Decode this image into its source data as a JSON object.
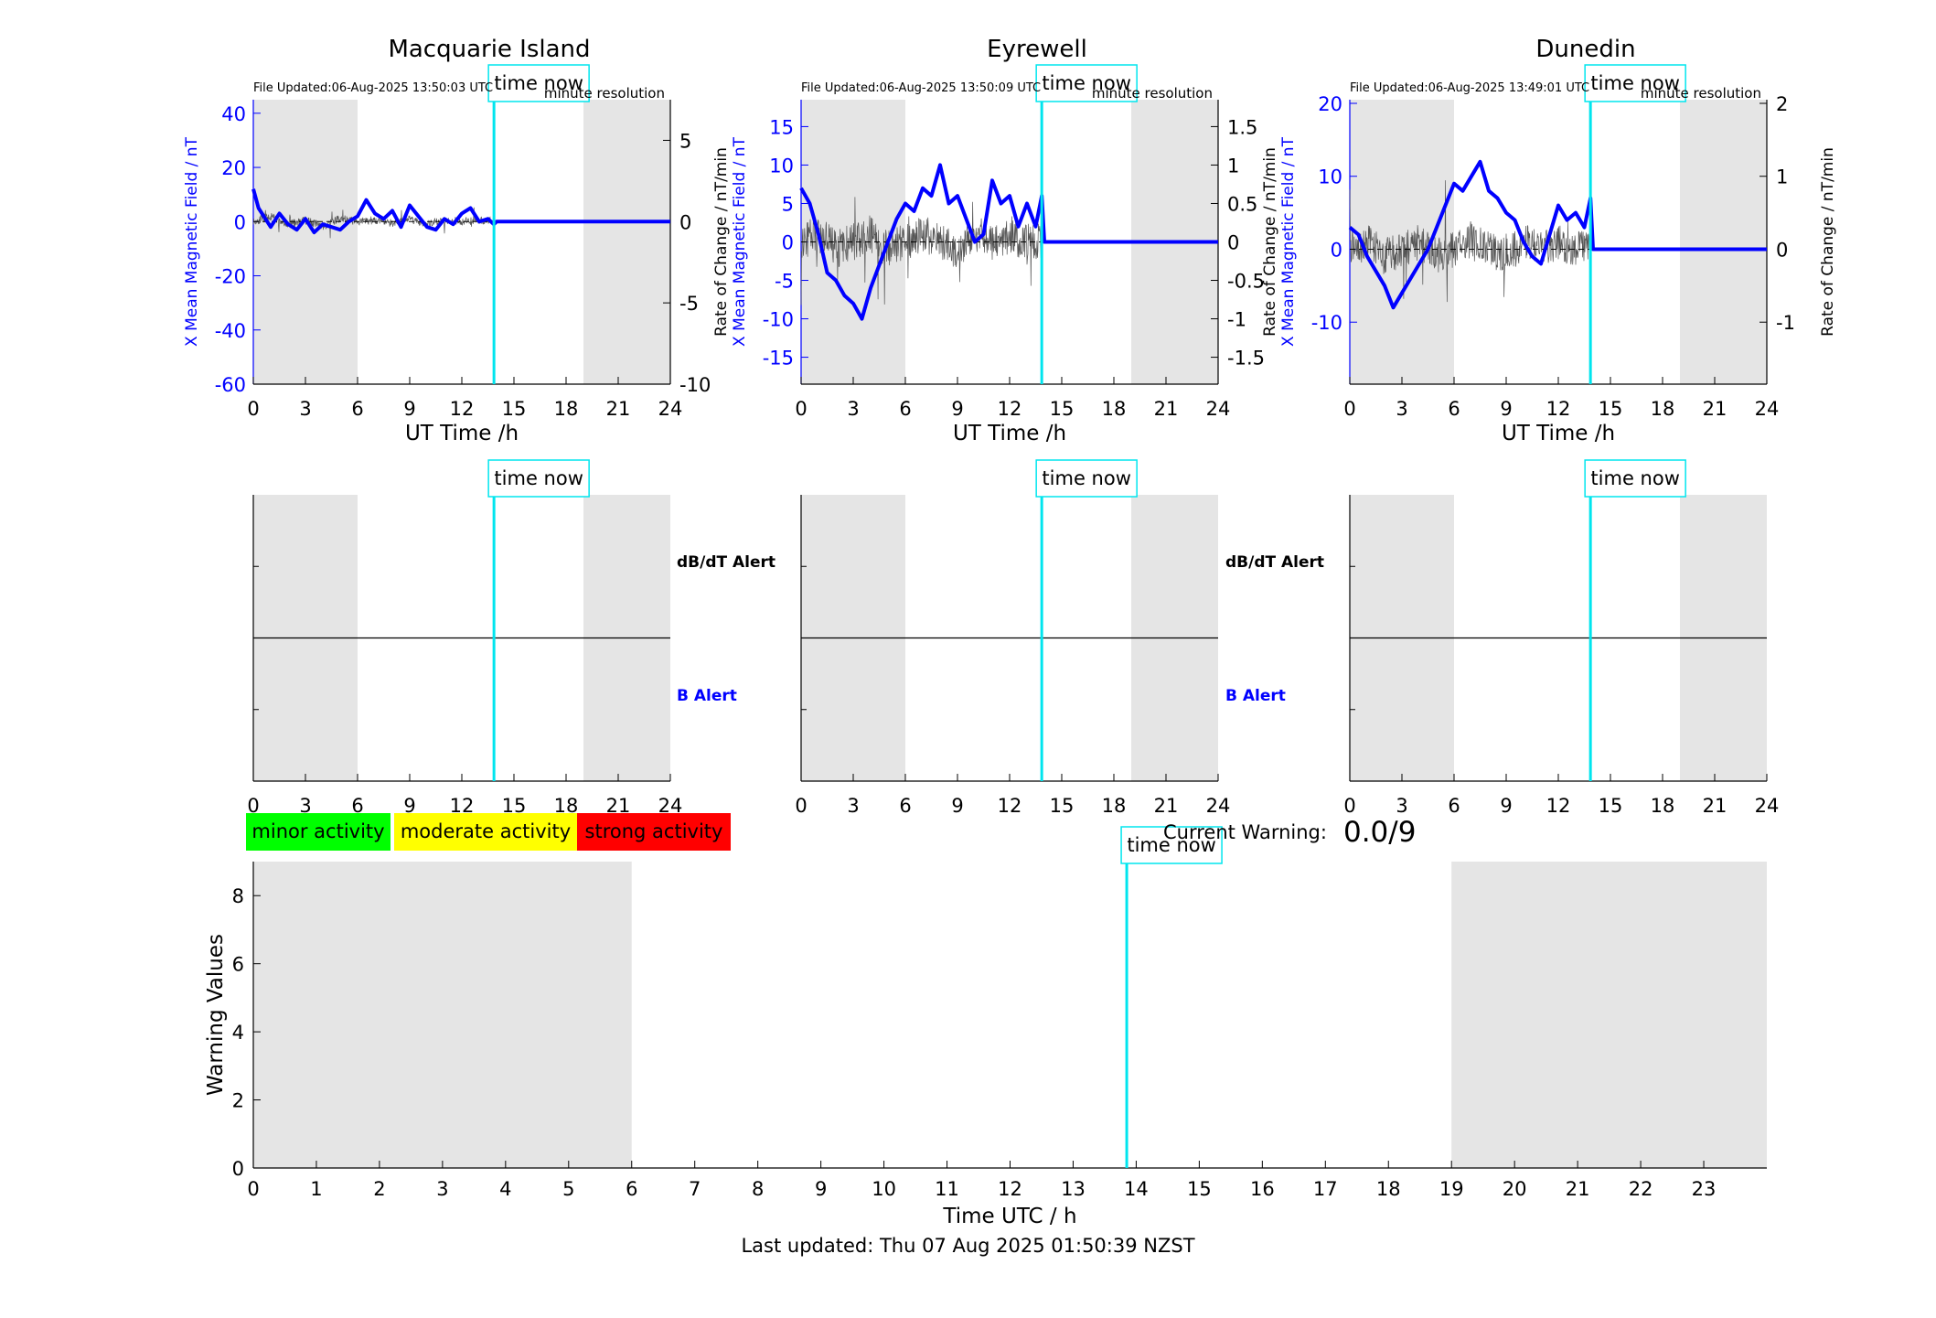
{
  "footer": {
    "last_updated": "Last updated: Thu 07 Aug 2025 01:50:39 NZST"
  },
  "legend": {
    "minor": {
      "label": "minor activity",
      "color": "#00ff00"
    },
    "moderate": {
      "label": "moderate activity",
      "color": "#ffff00"
    },
    "strong": {
      "label": "strong activity",
      "color": "#ff0000"
    }
  },
  "current_warning": {
    "label": "Current Warning:",
    "value": "0.0/9"
  },
  "colors": {
    "field": "#0000ff",
    "rate": "#555555",
    "now_line": "#00e5ee",
    "night": "#e5e5e5"
  },
  "chart_data": [
    {
      "id": "macquarie",
      "type": "line",
      "title": "Macquarie Island",
      "file_updated": "File Updated:06-Aug-2025 13:50:03 UTC",
      "resolution": "minute resolution",
      "xlabel": "UT Time /h",
      "ylabel_left": "X Mean Magnetic Field / nT",
      "ylabel_right": "",
      "xlim": [
        0,
        24
      ],
      "xticks": [
        0,
        3,
        6,
        9,
        12,
        15,
        18,
        21,
        24
      ],
      "ylim_left": [
        -60,
        45
      ],
      "yticks_left": [
        -60,
        -40,
        -20,
        0,
        20,
        40
      ],
      "ylim_right": [
        -10,
        7.5
      ],
      "yticks_right": [
        -10,
        -5,
        0,
        5
      ],
      "night_bands": [
        [
          0,
          6
        ],
        [
          19,
          24
        ]
      ],
      "time_now": 13.85,
      "time_now_label": "time now",
      "noise_amp": 7,
      "series": [
        {
          "name": "",
          "axis": "left",
          "x": [
            0,
            0.3,
            0.7,
            1,
            1.5,
            2,
            2.5,
            3,
            3.5,
            4,
            4.5,
            5,
            5.5,
            6,
            6.5,
            7,
            7.5,
            8,
            8.5,
            9,
            9.5,
            10,
            10.5,
            11,
            11.5,
            12,
            12.5,
            13,
            13.5,
            13.85,
            14,
            24
          ],
          "y": [
            12,
            5,
            1,
            -2,
            3,
            -1,
            -3,
            1,
            -4,
            -1,
            -2,
            -3,
            0,
            2,
            8,
            3,
            1,
            4,
            -2,
            6,
            2,
            -2,
            -3,
            1,
            -1,
            3,
            5,
            0,
            1,
            -1,
            0,
            0
          ]
        },
        {
          "name": "",
          "axis": "right",
          "x": [
            0,
            1,
            2,
            3,
            4,
            5,
            6,
            7,
            8,
            9,
            10,
            11,
            12,
            13,
            13.85
          ],
          "y": [
            0,
            0.3,
            -0.2,
            0.1,
            -0.3,
            0.2,
            0,
            0.1,
            -0.1,
            0.2,
            -0.2,
            0.1,
            0,
            0.1,
            0
          ]
        }
      ]
    },
    {
      "id": "eyrewell",
      "type": "line",
      "title": "Eyrewell",
      "file_updated": "File Updated:06-Aug-2025 13:50:09 UTC",
      "resolution": "minute resolution",
      "xlabel": "UT Time /h",
      "ylabel_left": "X Mean Magnetic Field / nT",
      "ylabel_right": "Rate of Change / nT/min",
      "xlim": [
        0,
        24
      ],
      "xticks": [
        0,
        3,
        6,
        9,
        12,
        15,
        18,
        21,
        24
      ],
      "ylim_left": [
        -18.5,
        18.5
      ],
      "yticks_left": [
        -15,
        -10,
        -5,
        0,
        5,
        10,
        15
      ],
      "ylim_right": [
        -1.85,
        1.85
      ],
      "yticks_right": [
        -1.5,
        -1,
        -0.5,
        0,
        0.5,
        1,
        1.5
      ],
      "night_bands": [
        [
          0,
          6
        ],
        [
          19,
          24
        ]
      ],
      "time_now": 13.85,
      "time_now_label": "time now",
      "noise_amp": 7,
      "series": [
        {
          "name": "",
          "axis": "left",
          "x": [
            0,
            0.5,
            1,
            1.5,
            2,
            2.5,
            3,
            3.5,
            4,
            4.5,
            5,
            5.5,
            6,
            6.5,
            7,
            7.5,
            8,
            8.5,
            9,
            9.5,
            10,
            10.5,
            11,
            11.5,
            12,
            12.5,
            13,
            13.5,
            13.85,
            14,
            24
          ],
          "y": [
            7,
            5,
            1,
            -4,
            -5,
            -7,
            -8,
            -10,
            -6,
            -3,
            0,
            3,
            5,
            4,
            7,
            6,
            10,
            5,
            6,
            3,
            0,
            1,
            8,
            5,
            6,
            2,
            5,
            2,
            6,
            0,
            0
          ]
        },
        {
          "name": "",
          "axis": "right",
          "x": [
            0,
            1,
            2,
            3,
            4,
            5,
            6,
            7,
            8,
            9,
            10,
            11,
            12,
            13,
            13.85
          ],
          "y": [
            0,
            0.1,
            -0.1,
            0,
            0.1,
            -0.1,
            0,
            0.1,
            0,
            -0.1,
            0.1,
            0,
            0.1,
            0,
            0
          ]
        }
      ]
    },
    {
      "id": "dunedin",
      "type": "line",
      "title": "Dunedin",
      "file_updated": "File Updated:06-Aug-2025 13:49:01 UTC",
      "resolution": "minute resolution",
      "xlabel": "UT Time /h",
      "ylabel_left": "X Mean Magnetic Field / nT",
      "ylabel_right": "Rate of Change / nT/min",
      "xlim": [
        0,
        24
      ],
      "xticks": [
        0,
        3,
        6,
        9,
        12,
        15,
        18,
        21,
        24
      ],
      "ylim_left": [
        -18.5,
        20.5
      ],
      "yticks_left": [
        -10,
        0,
        10,
        20
      ],
      "ylim_right": [
        -1.85,
        2.05
      ],
      "yticks_right": [
        -1,
        0,
        1,
        2
      ],
      "night_bands": [
        [
          0,
          6
        ],
        [
          19,
          24
        ]
      ],
      "time_now": 13.85,
      "time_now_label": "time now",
      "noise_amp": 7,
      "series": [
        {
          "name": "",
          "axis": "left",
          "x": [
            0,
            0.5,
            1,
            1.5,
            2,
            2.5,
            3,
            3.5,
            4,
            4.5,
            5,
            5.5,
            6,
            6.5,
            7,
            7.5,
            8,
            8.5,
            9,
            9.5,
            10,
            10.5,
            11,
            11.5,
            12,
            12.5,
            13,
            13.5,
            13.85,
            14,
            24
          ],
          "y": [
            3,
            2,
            -1,
            -3,
            -5,
            -8,
            -6,
            -4,
            -2,
            0,
            3,
            6,
            9,
            8,
            10,
            12,
            8,
            7,
            5,
            4,
            1,
            -1,
            -2,
            2,
            6,
            4,
            5,
            3,
            7,
            0,
            0
          ]
        },
        {
          "name": "",
          "axis": "right",
          "x": [
            0,
            1,
            2,
            3,
            4,
            5,
            6,
            7,
            8,
            9,
            10,
            11,
            12,
            13,
            13.85
          ],
          "y": [
            0,
            0.1,
            -0.1,
            0,
            0.1,
            -0.1,
            0,
            0.1,
            0,
            -0.1,
            0.1,
            0,
            0.1,
            0,
            0
          ]
        }
      ]
    },
    {
      "id": "alert-macquarie",
      "type": "line",
      "xlim": [
        0,
        24
      ],
      "xticks": [
        0,
        3,
        6,
        9,
        12,
        15,
        18,
        21,
        24
      ],
      "night_bands": [
        [
          0,
          6
        ],
        [
          19,
          24
        ]
      ],
      "time_now": 13.85,
      "time_now_label": "time now",
      "dbdt_label": "dB/dT Alert",
      "b_label": "B Alert"
    },
    {
      "id": "alert-eyrewell",
      "type": "line",
      "xlim": [
        0,
        24
      ],
      "xticks": [
        0,
        3,
        6,
        9,
        12,
        15,
        18,
        21,
        24
      ],
      "night_bands": [
        [
          0,
          6
        ],
        [
          19,
          24
        ]
      ],
      "time_now": 13.85,
      "time_now_label": "time now",
      "dbdt_label": "dB/dT Alert",
      "b_label": "B Alert"
    },
    {
      "id": "alert-dunedin",
      "type": "line",
      "xlim": [
        0,
        24
      ],
      "xticks": [
        0,
        3,
        6,
        9,
        12,
        15,
        18,
        21,
        24
      ],
      "night_bands": [
        [
          0,
          6
        ],
        [
          19,
          24
        ]
      ],
      "time_now": 13.85,
      "time_now_label": "time now"
    },
    {
      "id": "warning",
      "type": "bar",
      "xlabel": "Time UTC / h",
      "ylabel": "Warning Values",
      "xlim": [
        0,
        24
      ],
      "xticks": [
        0,
        1,
        2,
        3,
        4,
        5,
        6,
        7,
        8,
        9,
        10,
        11,
        12,
        13,
        14,
        15,
        16,
        17,
        18,
        19,
        20,
        21,
        22,
        23
      ],
      "ylim": [
        0,
        9
      ],
      "yticks": [
        0,
        2,
        4,
        6,
        8
      ],
      "night_bands": [
        [
          0,
          6
        ],
        [
          19,
          24
        ]
      ],
      "time_now": 13.85,
      "time_now_label": "time now",
      "values": []
    }
  ]
}
